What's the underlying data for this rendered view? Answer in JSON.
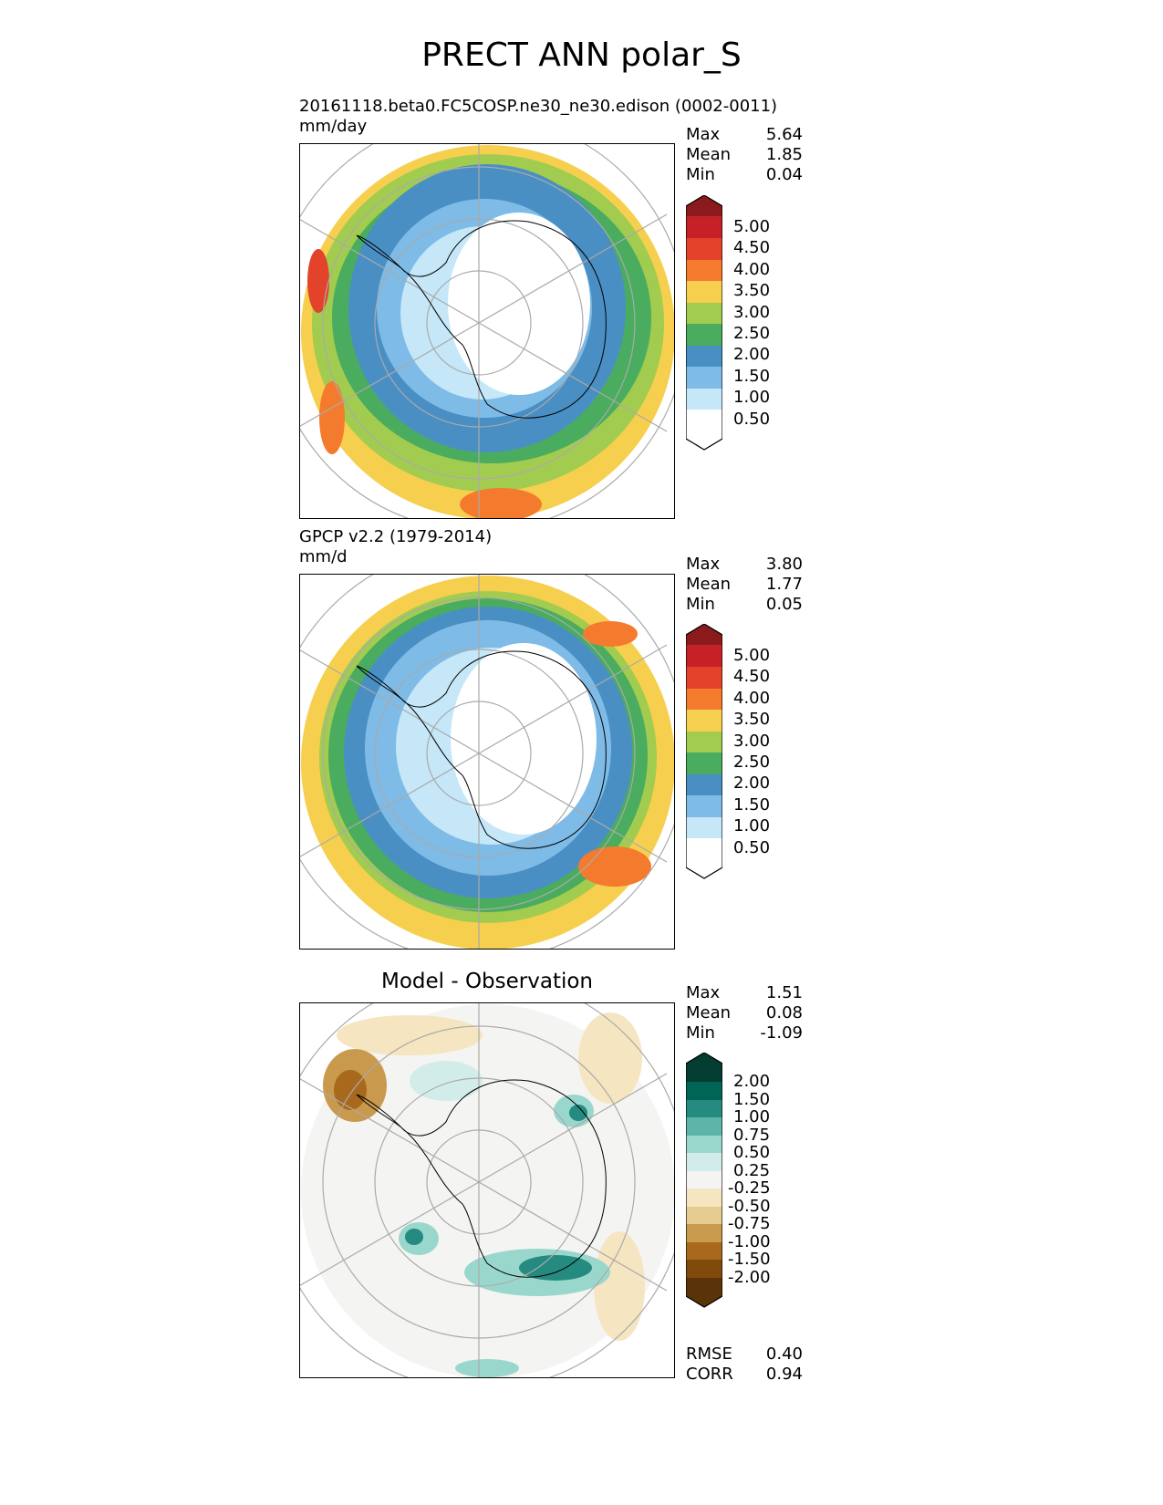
{
  "title": "PRECT ANN polar_S",
  "panels": [
    {
      "id": "test",
      "title_line1": "20161118.beta0.FC5COSP.ne30_ne30.edison (0002-0011)",
      "title_line2": "mm/day",
      "stats": [
        {
          "label": "Max",
          "value": "5.64"
        },
        {
          "label": "Mean",
          "value": "1.85"
        },
        {
          "label": "Min",
          "value": "0.04"
        }
      ]
    },
    {
      "id": "reference",
      "title_line1": "GPCP v2.2 (1979-2014)",
      "title_line2": "mm/d",
      "stats": [
        {
          "label": "Max",
          "value": "3.80"
        },
        {
          "label": "Mean",
          "value": "1.77"
        },
        {
          "label": "Min",
          "value": "0.05"
        }
      ]
    },
    {
      "id": "diff",
      "title": "Model - Observation",
      "stats": [
        {
          "label": "Max",
          "value": "1.51"
        },
        {
          "label": "Mean",
          "value": "0.08"
        },
        {
          "label": "Min",
          "value": "-1.09"
        }
      ],
      "metrics": [
        {
          "label": "RMSE",
          "value": "0.40"
        },
        {
          "label": "CORR",
          "value": "0.94"
        }
      ]
    }
  ],
  "colorbars": {
    "precip": {
      "labels": [
        "5.00",
        "4.50",
        "4.00",
        "3.50",
        "3.00",
        "2.50",
        "2.00",
        "1.50",
        "1.00",
        "0.50"
      ],
      "colors": [
        "#8b1a1c",
        "#c62127",
        "#e3432a",
        "#f47b2e",
        "#f7cf4f",
        "#a2cc4f",
        "#4aac5e",
        "#4a8fc4",
        "#7ebbe6",
        "#c5e7f8",
        "#ffffff"
      ]
    },
    "diff": {
      "labels": [
        "2.00",
        "1.50",
        "1.00",
        "0.75",
        "0.50",
        "0.25",
        "-0.25",
        "-0.50",
        "-0.75",
        "-1.00",
        "-1.50",
        "-2.00"
      ],
      "colors": [
        "#033d31",
        "#006557",
        "#258a7f",
        "#5db5a9",
        "#99d7cd",
        "#d2ede9",
        "#f4f4f2",
        "#f5e5c1",
        "#e6cb91",
        "#c99a4e",
        "#a9691d",
        "#804a0d",
        "#5a3308"
      ]
    }
  }
}
